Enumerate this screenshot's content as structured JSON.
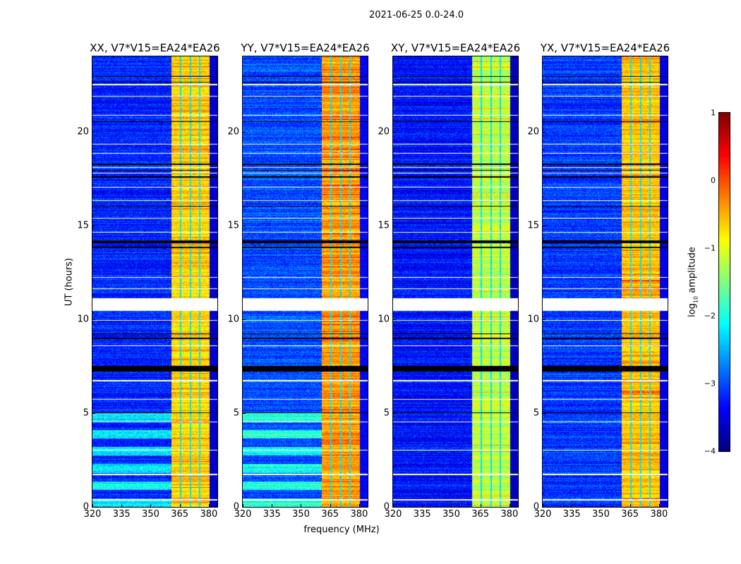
{
  "chart_data": {
    "type": "heatmap",
    "title": "2021-06-25 0.0-24.0",
    "xlabel": "frequency (MHz)",
    "ylabel": "UT (hours)",
    "xlim": [
      320,
      384.4
    ],
    "ylim": [
      0,
      24
    ],
    "xticks": [
      320,
      335,
      350,
      365,
      380
    ],
    "yticks": [
      0,
      5,
      10,
      15,
      20
    ],
    "panels": [
      {
        "title": "XX, V7*V15=EA24*EA26",
        "band_level": -0.7,
        "bg_level": -3.2
      },
      {
        "title": "YY, V7*V15=EA24*EA26",
        "band_level": -0.4,
        "bg_level": -3.0
      },
      {
        "title": "XY, V7*V15=EA24*EA26",
        "band_level": -1.2,
        "bg_level": -3.3
      },
      {
        "title": "YX, V7*V15=EA24*EA26",
        "band_level": -0.6,
        "bg_level": -3.1
      }
    ],
    "band_mhz": [
      360.7,
      380.4
    ],
    "band_gaps_mhz": [
      365.6,
      370.6,
      375.4
    ],
    "flagged_white_hours": [
      [
        22.45,
        22.55
      ],
      [
        21.85,
        21.9
      ],
      [
        20.85,
        20.9
      ],
      [
        19.3,
        19.35
      ],
      [
        18.8,
        18.85
      ],
      [
        18.05,
        18.12
      ],
      [
        17.75,
        17.8
      ],
      [
        17.0,
        17.05
      ],
      [
        16.3,
        16.35
      ],
      [
        15.35,
        15.4
      ],
      [
        14.6,
        14.65
      ],
      [
        12.2,
        12.25
      ],
      [
        11.6,
        11.65
      ],
      [
        10.45,
        11.1
      ],
      [
        9.9,
        9.95
      ],
      [
        8.55,
        8.6
      ],
      [
        6.7,
        6.75
      ],
      [
        5.7,
        5.75
      ],
      [
        4.5,
        4.55
      ],
      [
        3.0,
        3.05
      ],
      [
        1.7,
        1.75
      ],
      [
        0.35,
        0.4
      ]
    ],
    "flagged_black_hours": [
      [
        22.9,
        22.95
      ],
      [
        22.6,
        22.63
      ],
      [
        20.5,
        20.55
      ],
      [
        18.2,
        18.3
      ],
      [
        17.9,
        17.95
      ],
      [
        17.55,
        17.6
      ],
      [
        16.0,
        16.03
      ],
      [
        14.05,
        14.2
      ],
      [
        13.8,
        13.85
      ],
      [
        9.2,
        9.25
      ],
      [
        8.95,
        9.0
      ],
      [
        7.2,
        7.5
      ],
      [
        5.0,
        5.02
      ]
    ],
    "colorbar": {
      "label_prefix": "log",
      "label_sub": "10",
      "label_suffix": " amplitude",
      "range": [
        -4,
        1
      ],
      "ticks": [
        1,
        0,
        -1,
        -2,
        -3,
        -4
      ],
      "tick_labels": [
        "1",
        "0",
        "−1",
        "−2",
        "−3",
        "−4"
      ],
      "colormap": "jet"
    }
  }
}
